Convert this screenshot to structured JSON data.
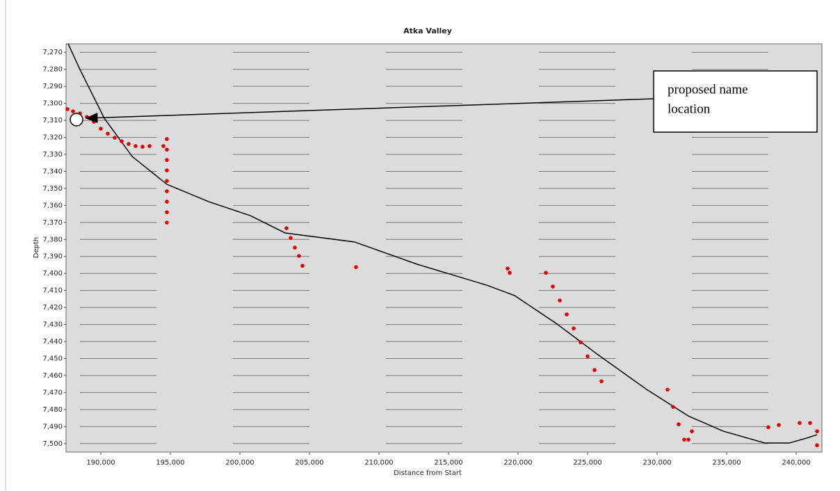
{
  "chart_data": {
    "type": "scatter",
    "title": "Atka Valley",
    "x_label": "Distance from Start",
    "y_label": "Depth",
    "annotation_lines": [
      "proposed name",
      "location"
    ],
    "xlim": [
      187500,
      241850
    ],
    "ylim": [
      7265,
      7505
    ],
    "y_inverted": true,
    "grid": true,
    "xticks": [
      {
        "value": 190000,
        "label": "190,000"
      },
      {
        "value": 195000,
        "label": "195,000"
      },
      {
        "value": 200000,
        "label": "200,000"
      },
      {
        "value": 205000,
        "label": "205,000"
      },
      {
        "value": 210000,
        "label": "210,000"
      },
      {
        "value": 215000,
        "label": "215,000"
      },
      {
        "value": 220000,
        "label": "220,000"
      },
      {
        "value": 225000,
        "label": "225,000"
      },
      {
        "value": 230000,
        "label": "230,000"
      },
      {
        "value": 235000,
        "label": "235,000"
      },
      {
        "value": 240000,
        "label": "240,000"
      }
    ],
    "yticks": [
      {
        "value": 7270,
        "label": "7,270"
      },
      {
        "value": 7280,
        "label": "7,280"
      },
      {
        "value": 7290,
        "label": "7,290"
      },
      {
        "value": 7300,
        "label": "7,300"
      },
      {
        "value": 7310,
        "label": "7,310"
      },
      {
        "value": 7320,
        "label": "7,320"
      },
      {
        "value": 7330,
        "label": "7,330"
      },
      {
        "value": 7340,
        "label": "7,340"
      },
      {
        "value": 7350,
        "label": "7,350"
      },
      {
        "value": 7360,
        "label": "7,360"
      },
      {
        "value": 7370,
        "label": "7,370"
      },
      {
        "value": 7380,
        "label": "7,380"
      },
      {
        "value": 7390,
        "label": "7,390"
      },
      {
        "value": 7400,
        "label": "7,400"
      },
      {
        "value": 7410,
        "label": "7,410"
      },
      {
        "value": 7420,
        "label": "7,420"
      },
      {
        "value": 7430,
        "label": "7,430"
      },
      {
        "value": 7440,
        "label": "7,440"
      },
      {
        "value": 7450,
        "label": "7,450"
      },
      {
        "value": 7460,
        "label": "7,460"
      },
      {
        "value": 7470,
        "label": "7,470"
      },
      {
        "value": 7480,
        "label": "7,480"
      },
      {
        "value": 7490,
        "label": "7,490"
      },
      {
        "value": 7500,
        "label": "7,500"
      }
    ],
    "line": {
      "color": "#000000",
      "x": [
        187650,
        188500,
        190250,
        192250,
        194750,
        197750,
        200750,
        203250,
        208250,
        212750,
        217750,
        219750,
        222750,
        225750,
        229250,
        232250,
        234750,
        237750,
        239500,
        240750,
        241500
      ],
      "y": [
        7265,
        7280.1,
        7308.8,
        7331.2,
        7347.6,
        7357.8,
        7366,
        7376.2,
        7381.5,
        7394.6,
        7406.9,
        7413,
        7429.4,
        7447.8,
        7468.2,
        7483.8,
        7492.7,
        7499.7,
        7499.7,
        7496.8,
        7494.8
      ]
    },
    "points": {
      "color": "#e00000",
      "x": [
        187600,
        188000,
        188500,
        189000,
        189500,
        190000,
        190500,
        191000,
        191500,
        192000,
        192500,
        193000,
        193500,
        194500,
        194750,
        194750,
        194750,
        194750,
        194750,
        194750,
        194750,
        194750,
        194750,
        203350,
        203650,
        203950,
        204250,
        204500,
        208350,
        219250,
        219400,
        222000,
        222500,
        223000,
        223500,
        224000,
        224500,
        225000,
        225500,
        226000,
        230750,
        231150,
        231550,
        231950,
        232250,
        232500,
        238000,
        238750,
        240250,
        241000,
        241500,
        241500
      ],
      "y": [
        7303.4,
        7304.7,
        7305.9,
        7308,
        7310.8,
        7314.9,
        7317.8,
        7320.2,
        7322.3,
        7323.9,
        7325.1,
        7325.5,
        7325.1,
        7325.1,
        7321,
        7327.2,
        7333.3,
        7339.4,
        7345.6,
        7351.7,
        7357.8,
        7364,
        7370.1,
        7373.4,
        7379.1,
        7384.8,
        7389.7,
        7395.5,
        7396.3,
        7397.1,
        7399.6,
        7399.6,
        7407.7,
        7415.9,
        7424.1,
        7432.3,
        7440.5,
        7448.7,
        7456.8,
        7463.4,
        7468.3,
        7478.5,
        7488.7,
        7497.7,
        7497.7,
        7492.8,
        7490.4,
        7489.1,
        7487.9,
        7487.9,
        7492.8,
        7501
      ]
    }
  }
}
